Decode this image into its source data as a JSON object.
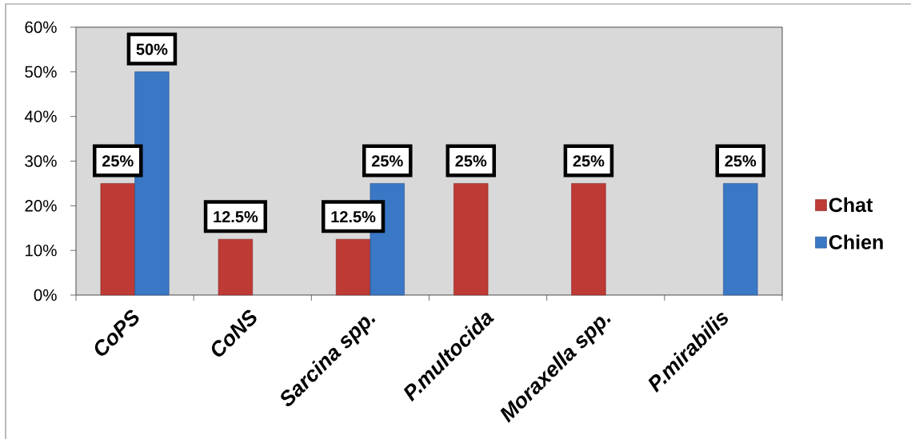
{
  "chart_data": {
    "type": "bar",
    "categories": [
      "CoPS",
      "CoNS",
      "Sarcina spp.",
      "P.multocida",
      "Moraxella spp.",
      "P.mirabilis"
    ],
    "series": [
      {
        "name": "Chat",
        "color": "#be3a35",
        "values": [
          25,
          12.5,
          12.5,
          25,
          25,
          null
        ],
        "value_labels": [
          "25%",
          "12.5%",
          "12.5%",
          "25%",
          "25%",
          null
        ]
      },
      {
        "name": "Chien",
        "color": "#3a77c4",
        "values": [
          50,
          null,
          25,
          null,
          null,
          25
        ],
        "value_labels": [
          "50%",
          null,
          "25%",
          null,
          null,
          "25%"
        ]
      }
    ],
    "ylim": [
      0,
      60
    ],
    "yticks": [
      {
        "value": 0,
        "label": "0%"
      },
      {
        "value": 10,
        "label": "10%"
      },
      {
        "value": 20,
        "label": "20%"
      },
      {
        "value": 30,
        "label": "30%"
      },
      {
        "value": 40,
        "label": "40%"
      },
      {
        "value": 50,
        "label": "50%"
      },
      {
        "value": 60,
        "label": "60%"
      }
    ],
    "legend": "right"
  }
}
